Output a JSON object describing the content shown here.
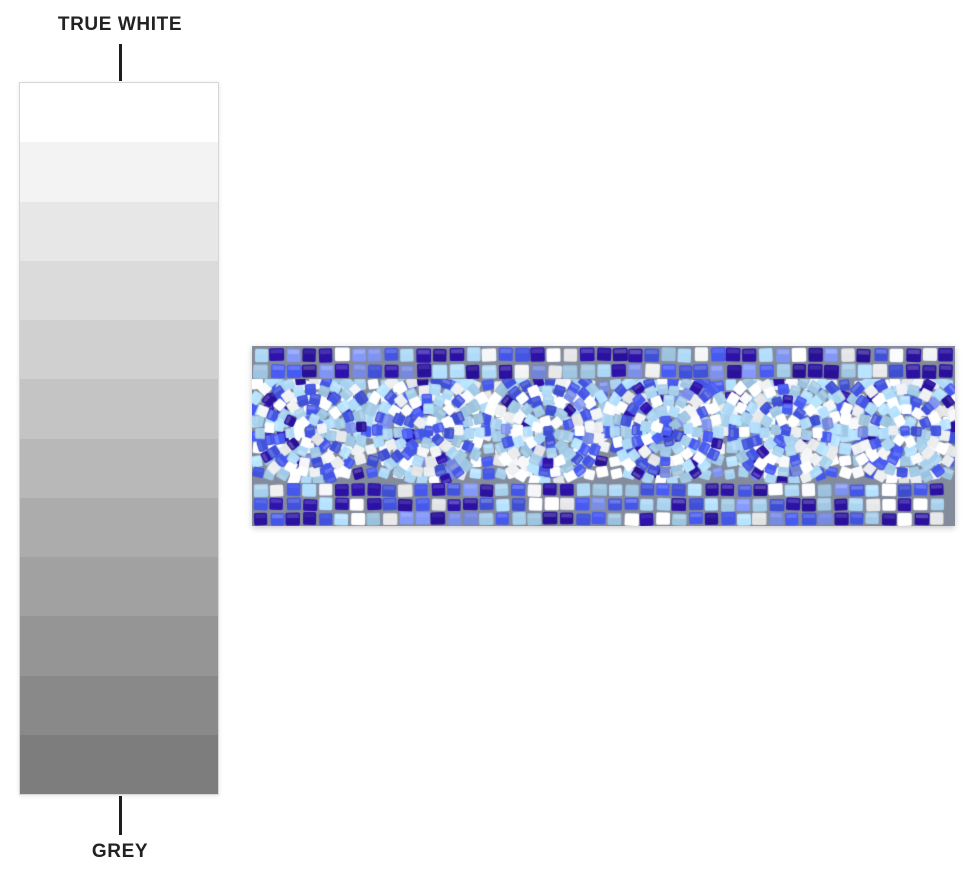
{
  "grayscale_scale": {
    "top_label": "TRUE WHITE",
    "bottom_label": "GREY",
    "steps": [
      "#ffffff",
      "#f3f3f3",
      "#e7e7e7",
      "#dbdbdb",
      "#d0d0d0",
      "#c4c4c4",
      "#b8b8b8",
      "#acacac",
      "#a1a1a1",
      "#959595",
      "#898989",
      "#7d7d7d"
    ]
  },
  "mosaic": {
    "alt": "Blue and white spiral wave mosaic border tile",
    "spiral_count": 6,
    "top_border_rows": 2,
    "bottom_border_rows": 3,
    "palette": {
      "navy": "#2a11a0",
      "royal": "#4355e3",
      "periwinkle": "#7b8fe9",
      "light_blue": "#a9d3f0",
      "white": "#f8f9fb",
      "grout": "#848b9b"
    }
  }
}
